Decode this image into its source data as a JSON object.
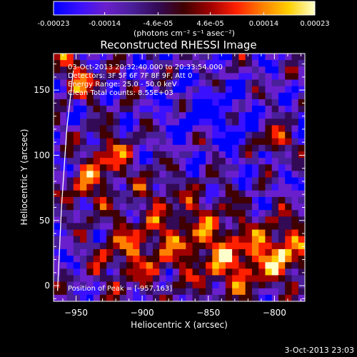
{
  "colorbar": {
    "tick_labels": [
      "-0.00023",
      "-0.00014",
      "-4.6e-05",
      "4.6e-05",
      "0.00014",
      "0.00023"
    ],
    "tick_values": [
      -0.00023,
      -0.00014,
      -4.6e-05,
      4.6e-05,
      0.00014,
      0.00023
    ],
    "range": [
      -0.00023,
      0.00023
    ],
    "units_label": "(photons cm⁻² s⁻¹ asec⁻²)"
  },
  "chart_data": {
    "type": "heatmap",
    "title": "Reconstructed RHESSI Image",
    "xlabel": "Heliocentric X (arcsec)",
    "ylabel": "Heliocentric Y (arcsec)",
    "xlim": [
      -967,
      -777
    ],
    "ylim": [
      -12,
      178
    ],
    "x_ticks": [
      -950,
      -900,
      -850,
      -800
    ],
    "y_ticks": [
      0,
      50,
      100,
      150
    ],
    "info_lines": [
      "03-Oct-2013 20:32:40.000 to 20:33:54.000",
      "Detectors: 3F 5F 6F 7F 8F 9F, Att 0",
      "Energy Range: 25.0 - 50.0 keV",
      "Clean    Total counts: 8.55E+03"
    ],
    "peak_label": "Position of Peak = [-957,163]",
    "peak": [
      -957,
      163
    ],
    "limb_curve_points": [
      [
        -964,
        -4
      ],
      [
        -961,
        60
      ],
      [
        -957,
        120
      ],
      [
        -952,
        165
      ]
    ]
  },
  "footer": {
    "timestamp": "3-Oct-2013 23:03"
  },
  "colors": {
    "background": "#000000",
    "text": "#ffffff",
    "colormap": [
      "#0000ff",
      "#3a10ff",
      "#6a1fcc",
      "#4a1f9a",
      "#330a55",
      "#400000",
      "#a00000",
      "#ff2000",
      "#ff8000",
      "#ffd000",
      "#ffffcc"
    ]
  }
}
